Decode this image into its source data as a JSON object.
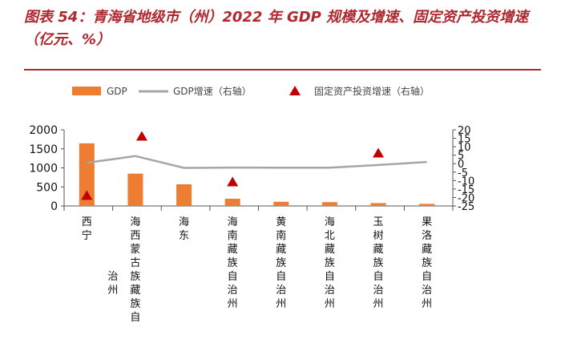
{
  "chart_data": {
    "type": "bar",
    "title": "图表 54：青海省地级市（州）2022 年 GDP 规模及增速、固定资产投资增速（亿元、%）",
    "categories": [
      "西宁",
      "海西蒙古族藏族自治州",
      "海东",
      "海南藏族自治州",
      "黄南藏族自治州",
      "海北藏族自治州",
      "玉树藏族自治州",
      "果洛藏族自治州"
    ],
    "series": [
      {
        "name": "GDP",
        "type": "bar",
        "axis": "left",
        "color": "#ED7D31",
        "values": [
          1645,
          850,
          570,
          190,
          110,
          100,
          75,
          55
        ]
      },
      {
        "name": "GDP增速（右轴）",
        "type": "line",
        "axis": "right",
        "color": "#A6A6A6",
        "values": [
          0.5,
          4.5,
          -2.5,
          -2.3,
          -2.4,
          -2.4,
          -0.8,
          1.0
        ]
      },
      {
        "name": "固定资产投资增速（右轴）",
        "type": "scatter",
        "marker": "triangle",
        "axis": "right",
        "color": "#C00000",
        "values": [
          -19,
          16,
          null,
          -11,
          null,
          null,
          6,
          null
        ]
      }
    ],
    "ylim_left": [
      0,
      2000
    ],
    "yticks_left": [
      0,
      500,
      1000,
      1500,
      2000
    ],
    "ylim_right": [
      -25,
      20
    ],
    "yticks_right": [
      -25,
      -20,
      -15,
      -10,
      -5,
      0,
      5,
      10,
      15,
      20
    ],
    "xlabel": "",
    "ylabel": "",
    "legend_position": "top-left"
  }
}
